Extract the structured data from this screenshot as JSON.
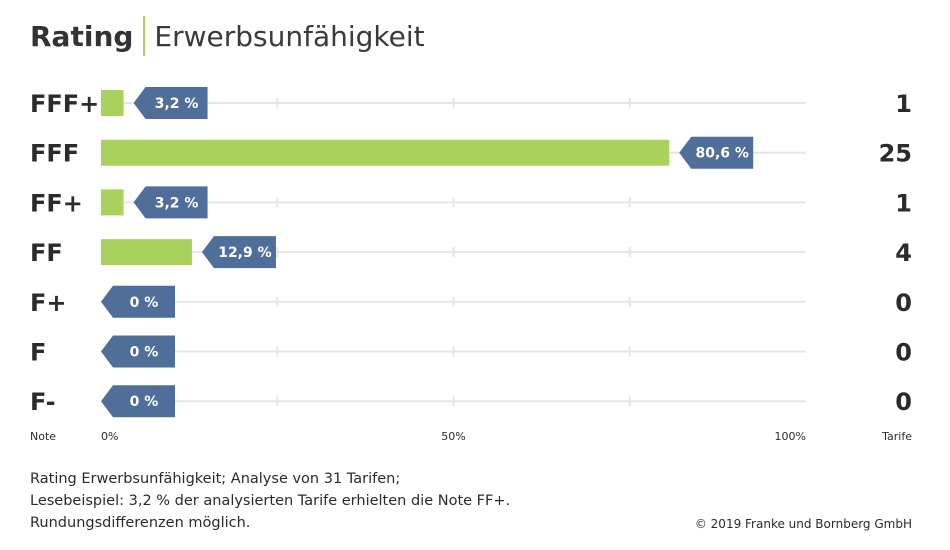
{
  "title": {
    "bold": "Rating",
    "light": "Erwerbsunfähigkeit"
  },
  "chart_data": {
    "type": "bar",
    "orientation": "horizontal",
    "categories": [
      "FFF+",
      "FFF",
      "FF+",
      "FF",
      "F+",
      "F",
      "F-"
    ],
    "values": [
      3.2,
      80.6,
      3.2,
      12.9,
      0,
      0,
      0
    ],
    "value_labels": [
      "3,2 %",
      "80,6 %",
      "3,2 %",
      "12,9 %",
      "0 %",
      "0 %",
      "0 %"
    ],
    "counts": [
      1,
      25,
      1,
      4,
      0,
      0,
      0
    ],
    "xlim": [
      0,
      100
    ],
    "x_ticks": [
      "0%",
      "50%",
      "100%"
    ],
    "left_axis_label": "Note",
    "right_axis_label": "Tarife",
    "bar_color": "#a9d25d",
    "label_color": "#506e9a",
    "grid_color": "#e6e6e6"
  },
  "footer": {
    "lines": [
      "Rating Erwerbsunfähigkeit; Analyse von 31 Tarifen;",
      "Lesebeispiel: 3,2 % der analysierten Tarife erhielten die Note FF+.",
      "Rundungsdifferenzen möglich."
    ],
    "copyright": "© 2019 Franke und Bornberg GmbH"
  }
}
